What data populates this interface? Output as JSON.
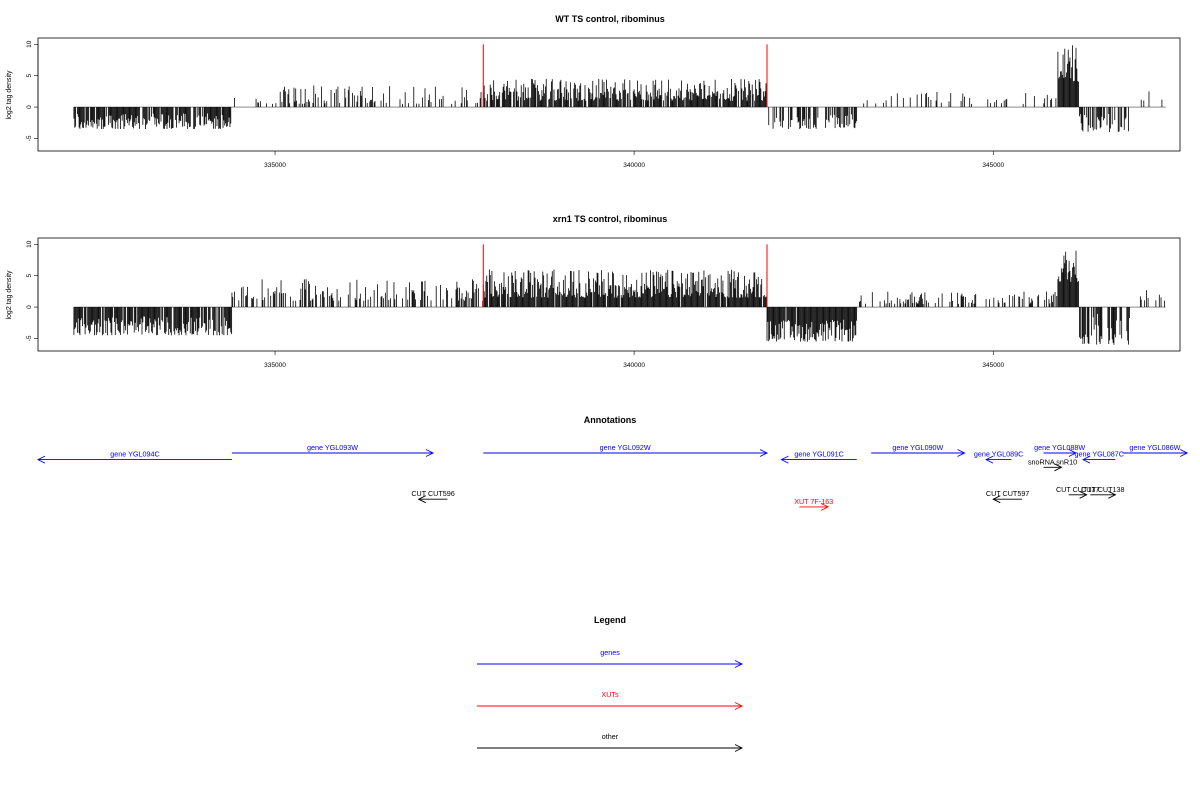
{
  "colors": {
    "genes": "#0000ff",
    "xuts": "#ff0000",
    "other": "#000000",
    "marker": "#ff0000",
    "bars": "#000000"
  },
  "chart_data": [
    {
      "type": "bar",
      "title": "WT TS control, ribominus",
      "ylabel": "log2 tag density",
      "xlim": [
        331700,
        347600
      ],
      "ylim": [
        -7,
        11
      ],
      "x_ticks": [
        335000,
        340000,
        345000
      ],
      "x_tick_labels": [
        "335000",
        "340000",
        "345000"
      ],
      "y_ticks": [
        -5,
        0,
        5,
        10
      ],
      "y_tick_labels": [
        "-5",
        "0",
        "5",
        "10"
      ],
      "markers": [
        {
          "x": 337900,
          "y": 10
        },
        {
          "x": 341850,
          "y": 10
        }
      ],
      "regions": [
        {
          "start": 332200,
          "end": 334400,
          "min": -3.5,
          "max": -1,
          "density": 0.85,
          "scale": 1.0
        },
        {
          "start": 334400,
          "end": 337900,
          "min": 0.5,
          "max": 3.5,
          "density": 0.3,
          "scale": 1.0
        },
        {
          "start": 337900,
          "end": 341850,
          "min": 1,
          "max": 4.5,
          "density": 0.85,
          "scale": 1.0
        },
        {
          "start": 341850,
          "end": 343100,
          "min": -3.5,
          "max": -1,
          "density": 0.6,
          "scale": 1.0
        },
        {
          "start": 343100,
          "end": 345900,
          "min": 0.5,
          "max": 2.5,
          "density": 0.15,
          "scale": 1.0
        },
        {
          "start": 345900,
          "end": 346200,
          "min": 4,
          "max": 10,
          "density": 1.0,
          "scale": 1.0
        },
        {
          "start": 346200,
          "end": 346900,
          "min": -4,
          "max": -1,
          "density": 0.6,
          "scale": 1.0
        },
        {
          "start": 347000,
          "end": 347400,
          "min": 1,
          "max": 3,
          "density": 0.2,
          "scale": 1.0
        }
      ]
    },
    {
      "type": "bar",
      "title": "xrn1 TS control, ribominus",
      "ylabel": "log2 tag density",
      "xlim": [
        331700,
        347600
      ],
      "ylim": [
        -7,
        11
      ],
      "x_ticks": [
        335000,
        340000,
        345000
      ],
      "x_tick_labels": [
        "335000",
        "340000",
        "345000"
      ],
      "y_ticks": [
        -5,
        0,
        5,
        10
      ],
      "y_tick_labels": [
        "-5",
        "0",
        "5",
        "10"
      ],
      "markers": [
        {
          "x": 337900,
          "y": 10
        },
        {
          "x": 341850,
          "y": 10
        }
      ],
      "regions": [
        {
          "start": 332200,
          "end": 334400,
          "min": -4.5,
          "max": -1.5,
          "density": 0.9,
          "scale": 1.0
        },
        {
          "start": 334400,
          "end": 337900,
          "min": 1,
          "max": 4.5,
          "density": 0.4,
          "scale": 1.0
        },
        {
          "start": 337900,
          "end": 341850,
          "min": 1.5,
          "max": 6,
          "density": 0.95,
          "scale": 1.0
        },
        {
          "start": 341850,
          "end": 343100,
          "min": -5.5,
          "max": -2,
          "density": 0.95,
          "scale": 1.0
        },
        {
          "start": 343100,
          "end": 345900,
          "min": 0.5,
          "max": 2.5,
          "density": 0.35,
          "scale": 1.0
        },
        {
          "start": 345900,
          "end": 346200,
          "min": 4,
          "max": 9.5,
          "density": 1.0,
          "scale": 1.0
        },
        {
          "start": 346200,
          "end": 346900,
          "min": -6,
          "max": -1,
          "density": 0.6,
          "scale": 1.0
        },
        {
          "start": 347000,
          "end": 347400,
          "min": 1,
          "max": 3,
          "density": 0.25,
          "scale": 1.0
        }
      ]
    }
  ],
  "annotations": {
    "title": "Annotations",
    "features": [
      {
        "label": "gene YGL094C",
        "category": "genes",
        "start": 331700,
        "end": 334400,
        "strand": "-",
        "row": 0.6
      },
      {
        "label": "gene YGL093W",
        "category": "genes",
        "start": 334400,
        "end": 337200,
        "strand": "+",
        "row": 0
      },
      {
        "label": "gene YGL092W",
        "category": "genes",
        "start": 337900,
        "end": 341850,
        "strand": "+",
        "row": 0
      },
      {
        "label": "gene YGL091C",
        "category": "genes",
        "start": 342050,
        "end": 343100,
        "strand": "-",
        "row": 0.6
      },
      {
        "label": "gene YGL090W",
        "category": "genes",
        "start": 343300,
        "end": 344600,
        "strand": "+",
        "row": 0
      },
      {
        "label": "gene YGL089C",
        "category": "genes",
        "start": 344900,
        "end": 345250,
        "strand": "-",
        "row": 0.6
      },
      {
        "label": "gene YGL088W",
        "category": "genes",
        "start": 345700,
        "end": 346150,
        "strand": "+",
        "row": 0
      },
      {
        "label": "gene YGL087C",
        "category": "genes",
        "start": 346250,
        "end": 346700,
        "strand": "-",
        "row": 0.6
      },
      {
        "label": "gene YGL086W",
        "category": "genes",
        "start": 346800,
        "end": 347700,
        "strand": "+",
        "row": 0
      },
      {
        "label": "snoRNA snR10",
        "category": "other",
        "start": 345700,
        "end": 345950,
        "strand": "+",
        "row": 1.3
      },
      {
        "label": "CUT CUT596",
        "category": "other",
        "start": 337000,
        "end": 337400,
        "strand": "-",
        "row": 4.2
      },
      {
        "label": "XUT 7F-163",
        "category": "xuts",
        "start": 342300,
        "end": 342700,
        "strand": "+",
        "row": 4.9
      },
      {
        "label": "CUT CUT597",
        "category": "other",
        "start": 345000,
        "end": 345400,
        "strand": "-",
        "row": 4.2
      },
      {
        "label": "CUT CUT137",
        "category": "other",
        "start": 346050,
        "end": 346300,
        "strand": "+",
        "row": 3.8
      },
      {
        "label": "CUT CUT138",
        "category": "other",
        "start": 346350,
        "end": 346700,
        "strand": "+",
        "row": 3.8
      }
    ]
  },
  "legend": {
    "title": "Legend",
    "items": [
      {
        "label": "genes",
        "category": "genes"
      },
      {
        "label": "XUTs",
        "category": "xuts"
      },
      {
        "label": "other",
        "category": "other"
      }
    ]
  }
}
